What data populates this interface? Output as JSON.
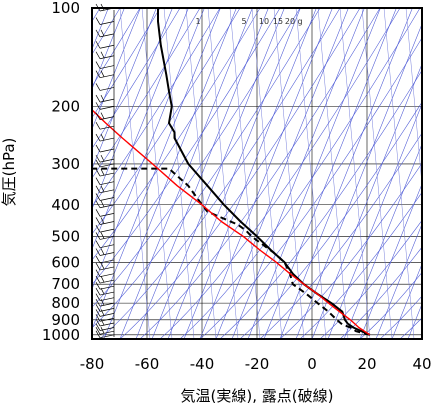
{
  "chart_data": {
    "type": "line",
    "title": "",
    "xlabel": "気温(実線), 露点(破線)",
    "ylabel": "気圧(hPa)",
    "xlim": [
      -80,
      40
    ],
    "ylim": [
      1030,
      100
    ],
    "y_scale": "log",
    "x_ticks": [
      "-80",
      "-60",
      "-40",
      "-20",
      "0",
      "20",
      "40"
    ],
    "y_ticks": [
      "100",
      "200",
      "300",
      "400",
      "500",
      "600",
      "700",
      "800",
      "900",
      "1000"
    ],
    "mixing_ratio_labels": [
      "1",
      "5",
      "10",
      "15",
      "20",
      "g"
    ],
    "grid": true,
    "series": [
      {
        "style": "solid",
        "color": "#000000",
        "points": [
          [
            21,
            1000
          ],
          [
            18,
            975
          ],
          [
            15,
            950
          ],
          [
            13,
            925
          ],
          [
            12,
            900
          ],
          [
            11,
            850
          ],
          [
            7,
            800
          ],
          [
            2,
            750
          ],
          [
            -3,
            700
          ],
          [
            -7,
            650
          ],
          [
            -10,
            600
          ],
          [
            -15,
            550
          ],
          [
            -20,
            500
          ],
          [
            -26,
            450
          ],
          [
            -32,
            400
          ],
          [
            -38,
            350
          ],
          [
            -45,
            300
          ],
          [
            -50,
            250
          ],
          [
            -50,
            240
          ],
          [
            -52,
            225
          ],
          [
            -51,
            200
          ],
          [
            -52,
            180
          ],
          [
            -53,
            160
          ],
          [
            -55,
            130
          ],
          [
            -56,
            110
          ],
          [
            -56,
            100
          ]
        ]
      },
      {
        "style": "dashed",
        "color": "#000000",
        "points": [
          [
            21,
            1000
          ],
          [
            16,
            975
          ],
          [
            14,
            950
          ],
          [
            11,
            930
          ],
          [
            9,
            900
          ],
          [
            6,
            850
          ],
          [
            2,
            800
          ],
          [
            -2,
            750
          ],
          [
            -7,
            700
          ],
          [
            -8,
            650
          ],
          [
            -10,
            600
          ],
          [
            -14,
            560
          ],
          [
            -22,
            500
          ],
          [
            -24,
            480
          ],
          [
            -27,
            460
          ],
          [
            -38,
            420
          ],
          [
            -40,
            400
          ],
          [
            -45,
            350
          ],
          [
            -52,
            310
          ],
          [
            -80,
            310
          ]
        ]
      },
      {
        "style": "solid",
        "color": "#ff0000",
        "points": [
          [
            21,
            1000
          ],
          [
            17,
            950
          ],
          [
            14,
            900
          ],
          [
            10,
            850
          ],
          [
            6,
            800
          ],
          [
            2,
            750
          ],
          [
            -3,
            700
          ],
          [
            -8,
            650
          ],
          [
            -13,
            600
          ],
          [
            -19,
            550
          ],
          [
            -25,
            500
          ],
          [
            -33,
            450
          ],
          [
            -40,
            400
          ],
          [
            -49,
            350
          ],
          [
            -58,
            300
          ],
          [
            -69,
            250
          ],
          [
            -75,
            225
          ],
          [
            -80,
            205
          ]
        ]
      }
    ],
    "wind_barbs": "left column at x≈-72, 100–1000 hPa"
  }
}
